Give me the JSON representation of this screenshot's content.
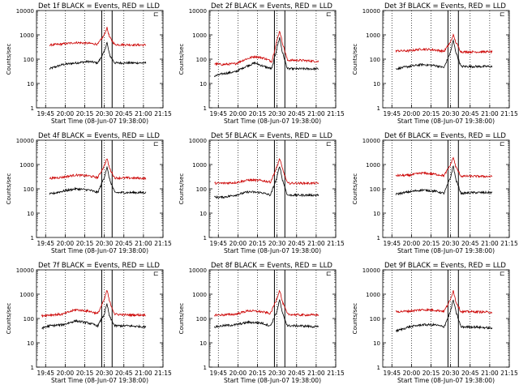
{
  "figure": {
    "common": {
      "xlabel": "Start Time (08-Jun-07 19:38:00)",
      "ylabel": "Counts/sec",
      "x_ticks": [
        "19:45",
        "20:00",
        "20:15",
        "20:30",
        "20:45",
        "21:00",
        "21:15"
      ],
      "y_ticks": [
        "1",
        "10",
        "100",
        "1000",
        "10000"
      ],
      "corner_mark": "⊏"
    },
    "colors": {
      "events": "#000000",
      "lld": "#cc0000",
      "axes": "#000000"
    }
  },
  "chart_data": [
    {
      "type": "line",
      "title": "Det 1f BLACK = Events, RED = LLD",
      "xlabel": "Start Time (08-Jun-07 19:38:00)",
      "ylabel": "Counts/sec",
      "x_range_min": [
        0,
        97
      ],
      "ylim": [
        1,
        10000
      ],
      "y_scale": "log",
      "x_ticks_min": [
        7,
        22,
        37,
        52,
        67,
        82,
        97
      ],
      "vertical_lines_min": [
        50,
        58
      ],
      "data_span_min": [
        10,
        84
      ],
      "peak": {
        "x_min": 54,
        "events": 500,
        "lld": 2000
      },
      "series": [
        {
          "name": "BLACK = Events",
          "color": "#000000",
          "x": [
            10,
            20,
            30,
            40,
            47,
            52,
            54,
            56,
            60,
            70,
            84
          ],
          "y": [
            40,
            60,
            70,
            80,
            70,
            200,
            500,
            150,
            70,
            70,
            70
          ]
        },
        {
          "name": "RED = LLD",
          "color": "#cc0000",
          "x": [
            10,
            20,
            30,
            40,
            47,
            52,
            54,
            56,
            60,
            70,
            84
          ],
          "y": [
            380,
            420,
            480,
            450,
            410,
            1000,
            2000,
            800,
            400,
            390,
            380
          ]
        }
      ]
    },
    {
      "type": "line",
      "title": "Det 2f BLACK = Events, RED = LLD",
      "xlabel": "Start Time (08-Jun-07 19:38:00)",
      "ylabel": "Counts/sec",
      "x_range_min": [
        0,
        97
      ],
      "ylim": [
        1,
        10000
      ],
      "y_scale": "log",
      "x_ticks_min": [
        7,
        22,
        37,
        52,
        67,
        82,
        97
      ],
      "vertical_lines_min": [
        50,
        58
      ],
      "data_span_min": [
        4,
        84
      ],
      "peak": {
        "x_min": 54,
        "events": 800,
        "lld": 1500
      },
      "series": [
        {
          "name": "BLACK = Events",
          "color": "#000000",
          "x": [
            4,
            10,
            20,
            28,
            35,
            42,
            48,
            52,
            54,
            56,
            60,
            70,
            84
          ],
          "y": [
            20,
            25,
            30,
            50,
            70,
            50,
            40,
            300,
            800,
            200,
            40,
            40,
            40
          ]
        },
        {
          "name": "RED = LLD",
          "color": "#cc0000",
          "x": [
            4,
            10,
            20,
            28,
            35,
            42,
            48,
            52,
            54,
            56,
            60,
            70,
            84
          ],
          "y": [
            65,
            60,
            65,
            100,
            130,
            110,
            80,
            600,
            1500,
            500,
            90,
            90,
            80
          ]
        }
      ]
    },
    {
      "type": "line",
      "title": "Det 3f BLACK = Events, RED = LLD",
      "xlabel": "Start Time (08-Jun-07 19:38:00)",
      "ylabel": "Counts/sec",
      "x_range_min": [
        0,
        97
      ],
      "ylim": [
        1,
        10000
      ],
      "y_scale": "log",
      "x_ticks_min": [
        7,
        22,
        37,
        52,
        67,
        82,
        97
      ],
      "vertical_lines_min": [
        50,
        58
      ],
      "data_span_min": [
        10,
        84
      ],
      "peak": {
        "x_min": 54,
        "events": 600,
        "lld": 1000
      },
      "series": [
        {
          "name": "BLACK = Events",
          "color": "#000000",
          "x": [
            10,
            20,
            30,
            40,
            47,
            52,
            54,
            56,
            60,
            70,
            84
          ],
          "y": [
            40,
            50,
            60,
            55,
            45,
            200,
            600,
            200,
            50,
            50,
            50
          ]
        },
        {
          "name": "RED = LLD",
          "color": "#cc0000",
          "x": [
            10,
            20,
            30,
            40,
            47,
            52,
            54,
            56,
            60,
            70,
            84
          ],
          "y": [
            220,
            220,
            260,
            240,
            210,
            500,
            1000,
            500,
            200,
            200,
            200
          ]
        }
      ]
    },
    {
      "type": "line",
      "title": "Det 4f BLACK = Events, RED = LLD",
      "xlabel": "Start Time (08-Jun-07 19:38:00)",
      "ylabel": "Counts/sec",
      "x_range_min": [
        0,
        97
      ],
      "ylim": [
        1,
        10000
      ],
      "y_scale": "log",
      "x_ticks_min": [
        7,
        22,
        37,
        52,
        67,
        82,
        97
      ],
      "vertical_lines_min": [
        50,
        58
      ],
      "data_span_min": [
        10,
        84
      ],
      "peak": {
        "x_min": 54,
        "events": 800,
        "lld": 1800
      },
      "series": [
        {
          "name": "BLACK = Events",
          "color": "#000000",
          "x": [
            10,
            20,
            30,
            40,
            47,
            52,
            54,
            56,
            60,
            70,
            84
          ],
          "y": [
            60,
            80,
            100,
            90,
            70,
            300,
            800,
            250,
            70,
            70,
            70
          ]
        },
        {
          "name": "RED = LLD",
          "color": "#cc0000",
          "x": [
            10,
            20,
            30,
            40,
            47,
            52,
            54,
            56,
            60,
            70,
            84
          ],
          "y": [
            270,
            300,
            370,
            340,
            290,
            900,
            1800,
            700,
            280,
            280,
            270
          ]
        }
      ]
    },
    {
      "type": "line",
      "title": "Det 5f BLACK = Events, RED = LLD",
      "xlabel": "Start Time (08-Jun-07 19:38:00)",
      "ylabel": "Counts/sec",
      "x_range_min": [
        0,
        97
      ],
      "ylim": [
        1,
        10000
      ],
      "y_scale": "log",
      "x_ticks_min": [
        7,
        22,
        37,
        52,
        67,
        82,
        97
      ],
      "vertical_lines_min": [
        50,
        58
      ],
      "data_span_min": [
        4,
        84
      ],
      "peak": {
        "x_min": 54,
        "events": 900,
        "lld": 1800
      },
      "series": [
        {
          "name": "BLACK = Events",
          "color": "#000000",
          "x": [
            4,
            10,
            20,
            30,
            40,
            47,
            52,
            54,
            56,
            60,
            70,
            84
          ],
          "y": [
            45,
            45,
            55,
            75,
            70,
            55,
            300,
            900,
            250,
            55,
            55,
            55
          ]
        },
        {
          "name": "RED = LLD",
          "color": "#cc0000",
          "x": [
            4,
            10,
            20,
            30,
            40,
            47,
            52,
            54,
            56,
            60,
            70,
            84
          ],
          "y": [
            170,
            170,
            180,
            230,
            220,
            190,
            800,
            1800,
            700,
            170,
            170,
            170
          ]
        }
      ]
    },
    {
      "type": "line",
      "title": "Det 6f BLACK = Events, RED = LLD",
      "xlabel": "Start Time (08-Jun-07 19:38:00)",
      "ylabel": "Counts/sec",
      "x_range_min": [
        0,
        97
      ],
      "ylim": [
        1,
        10000
      ],
      "y_scale": "log",
      "x_ticks_min": [
        7,
        22,
        37,
        52,
        67,
        82,
        97
      ],
      "vertical_lines_min": [
        50,
        58
      ],
      "data_span_min": [
        10,
        84
      ],
      "peak": {
        "x_min": 54,
        "events": 900,
        "lld": 2000
      },
      "series": [
        {
          "name": "BLACK = Events",
          "color": "#000000",
          "x": [
            10,
            20,
            30,
            40,
            47,
            52,
            54,
            56,
            60,
            70,
            84
          ],
          "y": [
            60,
            75,
            90,
            80,
            65,
            300,
            900,
            250,
            65,
            70,
            70
          ]
        },
        {
          "name": "RED = LLD",
          "color": "#cc0000",
          "x": [
            10,
            20,
            30,
            40,
            47,
            52,
            54,
            56,
            60,
            70,
            84
          ],
          "y": [
            350,
            360,
            450,
            400,
            350,
            1000,
            2000,
            800,
            330,
            330,
            320
          ]
        }
      ]
    },
    {
      "type": "line",
      "title": "Det 7f BLACK = Events, RED = LLD",
      "xlabel": "Start Time (08-Jun-07 19:38:00)",
      "ylabel": "Counts/sec",
      "x_range_min": [
        0,
        97
      ],
      "ylim": [
        1,
        10000
      ],
      "y_scale": "log",
      "x_ticks_min": [
        7,
        22,
        37,
        52,
        67,
        82,
        97
      ],
      "vertical_lines_min": [
        50,
        58
      ],
      "data_span_min": [
        4,
        84
      ],
      "peak": {
        "x_min": 54,
        "events": 400,
        "lld": 1500
      },
      "series": [
        {
          "name": "BLACK = Events",
          "color": "#000000",
          "x": [
            4,
            10,
            20,
            30,
            40,
            47,
            52,
            54,
            56,
            60,
            70,
            84
          ],
          "y": [
            40,
            50,
            55,
            80,
            65,
            50,
            150,
            400,
            120,
            50,
            50,
            45
          ]
        },
        {
          "name": "RED = LLD",
          "color": "#cc0000",
          "x": [
            4,
            10,
            20,
            30,
            40,
            47,
            52,
            54,
            56,
            60,
            70,
            84
          ],
          "y": [
            130,
            140,
            150,
            230,
            200,
            160,
            600,
            1500,
            500,
            150,
            140,
            140
          ]
        }
      ]
    },
    {
      "type": "line",
      "title": "Det 8f BLACK = Events, RED = LLD",
      "xlabel": "Start Time (08-Jun-07 19:38:00)",
      "ylabel": "Counts/sec",
      "x_range_min": [
        0,
        97
      ],
      "ylim": [
        1,
        10000
      ],
      "y_scale": "log",
      "x_ticks_min": [
        7,
        22,
        37,
        52,
        67,
        82,
        97
      ],
      "vertical_lines_min": [
        50,
        58
      ],
      "data_span_min": [
        4,
        84
      ],
      "peak": {
        "x_min": 54,
        "events": 600,
        "lld": 1500
      },
      "series": [
        {
          "name": "BLACK = Events",
          "color": "#000000",
          "x": [
            4,
            10,
            20,
            30,
            40,
            47,
            52,
            54,
            56,
            60,
            70,
            84
          ],
          "y": [
            45,
            50,
            55,
            70,
            65,
            50,
            200,
            600,
            170,
            50,
            50,
            45
          ]
        },
        {
          "name": "RED = LLD",
          "color": "#cc0000",
          "x": [
            4,
            10,
            20,
            30,
            40,
            47,
            52,
            54,
            56,
            60,
            70,
            84
          ],
          "y": [
            140,
            140,
            150,
            210,
            190,
            160,
            700,
            1500,
            500,
            150,
            140,
            140
          ]
        }
      ]
    },
    {
      "type": "line",
      "title": "Det 9f BLACK = Events, RED = LLD",
      "xlabel": "Start Time (08-Jun-07 19:38:00)",
      "ylabel": "Counts/sec",
      "x_range_min": [
        0,
        97
      ],
      "ylim": [
        1,
        10000
      ],
      "y_scale": "log",
      "x_ticks_min": [
        7,
        22,
        37,
        52,
        67,
        82,
        97
      ],
      "vertical_lines_min": [
        50,
        58
      ],
      "data_span_min": [
        10,
        84
      ],
      "peak": {
        "x_min": 54,
        "events": 600,
        "lld": 1500
      },
      "series": [
        {
          "name": "BLACK = Events",
          "color": "#000000",
          "x": [
            10,
            20,
            30,
            40,
            47,
            52,
            54,
            56,
            60,
            70,
            84
          ],
          "y": [
            30,
            45,
            55,
            55,
            45,
            200,
            600,
            200,
            45,
            45,
            40
          ]
        },
        {
          "name": "RED = LLD",
          "color": "#cc0000",
          "x": [
            10,
            20,
            30,
            40,
            47,
            52,
            54,
            56,
            60,
            70,
            84
          ],
          "y": [
            190,
            200,
            230,
            220,
            200,
            600,
            1500,
            500,
            190,
            190,
            180
          ]
        }
      ]
    }
  ]
}
